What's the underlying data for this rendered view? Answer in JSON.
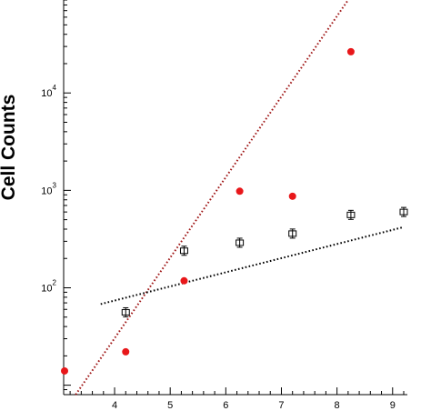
{
  "chart_data": {
    "type": "scatter",
    "title": "",
    "xlabel": "",
    "ylabel": "Cell Counts",
    "yscale": "log",
    "xlim": [
      3.1,
      9.2
    ],
    "ylim": [
      8,
      90000
    ],
    "x_ticks": [
      "4",
      "5",
      "6",
      "7",
      "8",
      "9"
    ],
    "y_ticks": [
      {
        "value": 100,
        "base": "10",
        "exp": "2"
      },
      {
        "value": 1000,
        "base": "10",
        "exp": "3"
      },
      {
        "value": 10000,
        "base": "10",
        "exp": "4"
      }
    ],
    "grid": false,
    "series": [
      {
        "marker": "filled-circle",
        "color": "#e8171a",
        "x": [
          3.1,
          4.2,
          5.25,
          6.25,
          7.2,
          8.25
        ],
        "y": [
          14,
          22,
          118,
          980,
          870,
          26500
        ]
      },
      {
        "marker": "open-square-errorbar",
        "color": "#000000",
        "x": [
          4.2,
          5.25,
          6.25,
          7.2,
          8.25,
          9.2
        ],
        "y": [
          56,
          240,
          290,
          360,
          560,
          600
        ]
      }
    ],
    "fit_lines": [
      {
        "style": "dotted",
        "color": "#a01818",
        "x": [
          3.3,
          8.2
        ],
        "y": [
          8,
          90000
        ]
      },
      {
        "style": "dotted",
        "color": "#000000",
        "x": [
          3.75,
          9.2
        ],
        "y": [
          68,
          420
        ]
      }
    ]
  }
}
